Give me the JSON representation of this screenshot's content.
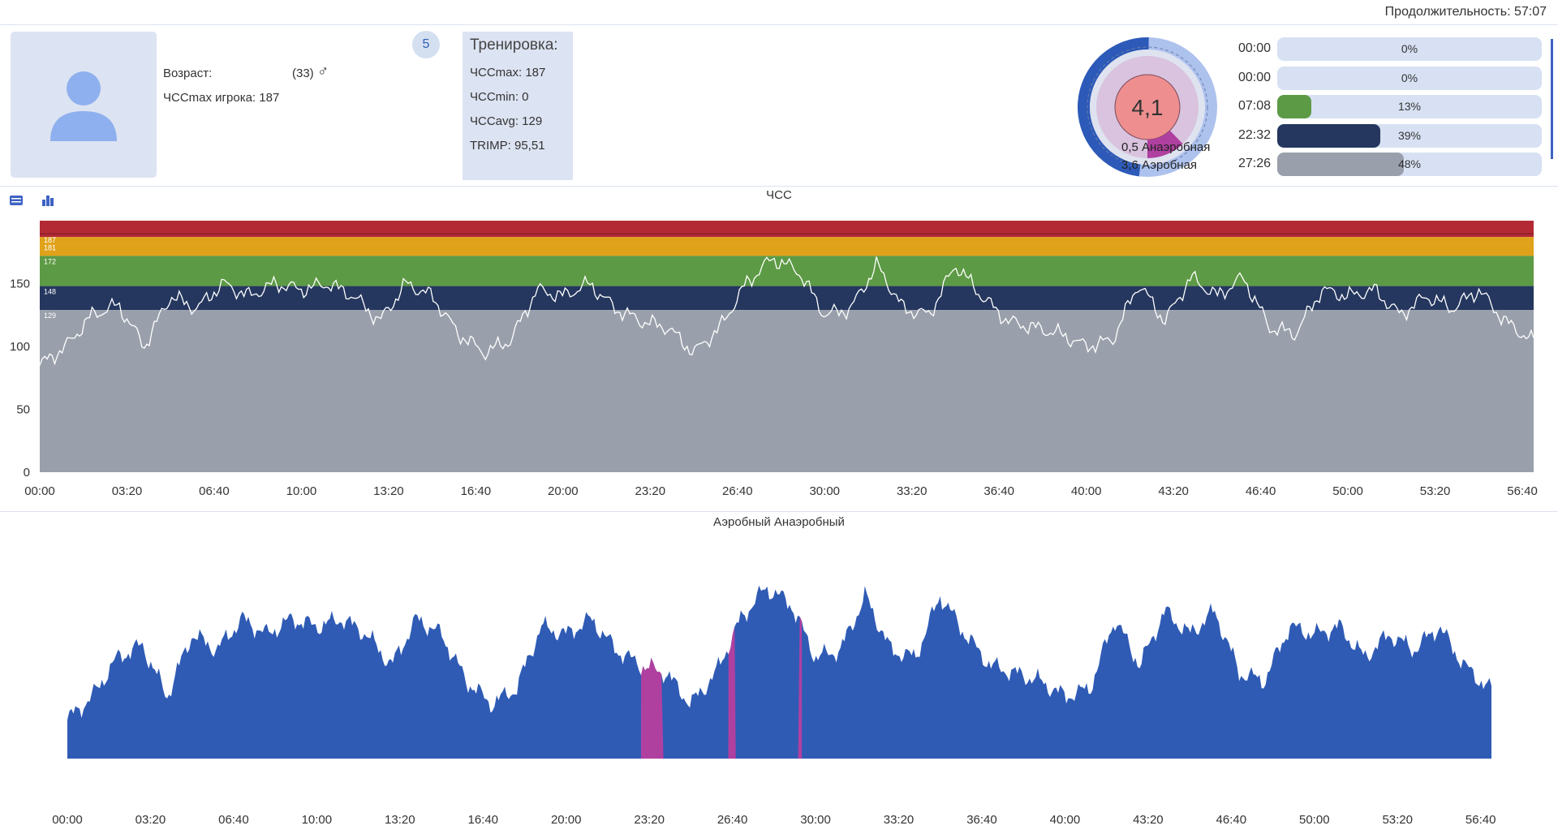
{
  "header": {
    "duration_label": "Продолжительность: 57:07"
  },
  "player": {
    "age_label": "Возраст:",
    "age_value": "(33)",
    "gender_symbol": "♂",
    "hrmax_label": "ЧССmax игрока: 187",
    "badge": "5"
  },
  "training": {
    "title": "Тренировка:",
    "hrmax": "ЧССmax: 187",
    "hrmin": "ЧССmin: 0",
    "hravg": "ЧССavg: 129",
    "trimp": "TRIMP: 95,51"
  },
  "donut": {
    "center_value": "4,1",
    "anaerobic_label": "0,5 Анаэробная",
    "aerobic_label": "3,6 Аэробная",
    "anaerobic_value": 0.5,
    "aerobic_value": 3.6
  },
  "zones": [
    {
      "time": "00:00",
      "pct_label": "0%",
      "pct": 0,
      "color": "#d7e1f3"
    },
    {
      "time": "00:00",
      "pct_label": "0%",
      "pct": 0,
      "color": "#d7e1f3"
    },
    {
      "time": "07:08",
      "pct_label": "13%",
      "pct": 13,
      "color": "#5d9a45"
    },
    {
      "time": "22:32",
      "pct_label": "39%",
      "pct": 39,
      "color": "#25375e"
    },
    {
      "time": "27:26",
      "pct_label": "48%",
      "pct": 48,
      "color": "#9aa0ab"
    }
  ],
  "colors": {
    "accent": "#2f5fb3",
    "zone_red": "#b32a35",
    "zone_orange": "#e0a21a",
    "zone_green": "#5d9a45",
    "zone_navy": "#25375e",
    "zone_gray": "#9aa0ab",
    "anaerobic": "#b040a0",
    "aerobic": "#2f5bb5"
  },
  "toolbar": {
    "icon_table": "table-icon",
    "icon_bar": "bar-chart-icon"
  },
  "chart_data": [
    {
      "type": "area",
      "title": "ЧСС",
      "xlabel": "",
      "ylabel": "",
      "ylim": [
        0,
        200
      ],
      "yticks": [
        "0",
        "50",
        "100",
        "150"
      ],
      "xticks": [
        "00:00",
        "03:20",
        "06:40",
        "10:00",
        "13:20",
        "16:40",
        "20:00",
        "23:20",
        "26:40",
        "30:00",
        "33:20",
        "36:40",
        "40:00",
        "43:20",
        "46:40",
        "50:00",
        "53:20",
        "56:40"
      ],
      "zone_thresholds": [
        {
          "label": "187",
          "value": 187
        },
        {
          "label": "181",
          "value": 181
        },
        {
          "label": "172",
          "value": 172
        },
        {
          "label": "148",
          "value": 148
        },
        {
          "label": "129",
          "value": 129
        }
      ],
      "series": [
        {
          "name": "ЧСС",
          "x_minutes": [
            0,
            1,
            2,
            3,
            4,
            5,
            6,
            7,
            8,
            9,
            10,
            11,
            12,
            13,
            14,
            15,
            16,
            17,
            18,
            19,
            20,
            21,
            22,
            23,
            24,
            25,
            26,
            27,
            28,
            29,
            30,
            31,
            32,
            33,
            34,
            35,
            36,
            37,
            38,
            39,
            40,
            41,
            42,
            43,
            44,
            45,
            46,
            47,
            48,
            49,
            50,
            51,
            52,
            53,
            54,
            55,
            56,
            57
          ],
          "values": [
            85,
            100,
            125,
            133,
            100,
            140,
            130,
            150,
            140,
            150,
            145,
            150,
            140,
            120,
            150,
            140,
            110,
            95,
            105,
            145,
            140,
            150,
            130,
            120,
            115,
            95,
            115,
            150,
            170,
            160,
            125,
            130,
            165,
            130,
            125,
            165,
            140,
            120,
            115,
            110,
            100,
            105,
            150,
            120,
            155,
            140,
            155,
            115,
            110,
            145,
            140,
            145,
            125,
            140,
            130,
            145,
            120,
            105
          ],
          "color": "#ffffff"
        }
      ]
    },
    {
      "type": "area",
      "title": "Аэробный Анаэробный",
      "xlabel": "",
      "ylabel": "",
      "xticks": [
        "00:00",
        "03:20",
        "06:40",
        "10:00",
        "13:20",
        "16:40",
        "20:00",
        "23:20",
        "26:40",
        "30:00",
        "33:20",
        "36:40",
        "40:00",
        "43:20",
        "46:40",
        "50:00",
        "53:20",
        "56:40"
      ],
      "series": [
        {
          "name": "Аэробный",
          "x_minutes": [
            0,
            1,
            2,
            3,
            4,
            5,
            6,
            7,
            8,
            9,
            10,
            11,
            12,
            13,
            14,
            15,
            16,
            17,
            18,
            19,
            20,
            21,
            22,
            23,
            24,
            25,
            26,
            27,
            28,
            29,
            30,
            31,
            32,
            33,
            34,
            35,
            36,
            37,
            38,
            39,
            40,
            41,
            42,
            43,
            44,
            45,
            46,
            47,
            48,
            49,
            50,
            51,
            52,
            53,
            54,
            55,
            56,
            57
          ],
          "values": [
            85,
            100,
            125,
            133,
            100,
            140,
            130,
            150,
            140,
            150,
            145,
            150,
            140,
            120,
            150,
            140,
            110,
            95,
            105,
            145,
            140,
            150,
            130,
            120,
            115,
            95,
            115,
            150,
            170,
            160,
            125,
            130,
            165,
            130,
            125,
            165,
            140,
            120,
            115,
            110,
            100,
            105,
            150,
            120,
            155,
            140,
            155,
            115,
            110,
            145,
            140,
            145,
            125,
            140,
            130,
            145,
            120,
            105
          ],
          "color": "#2f5bb5"
        },
        {
          "name": "Анаэробный",
          "ranges_minutes": [
            [
              23.0,
              23.9
            ],
            [
              26.5,
              26.8
            ],
            [
              29.3,
              29.45
            ]
          ],
          "color": "#b040a0"
        }
      ]
    }
  ]
}
